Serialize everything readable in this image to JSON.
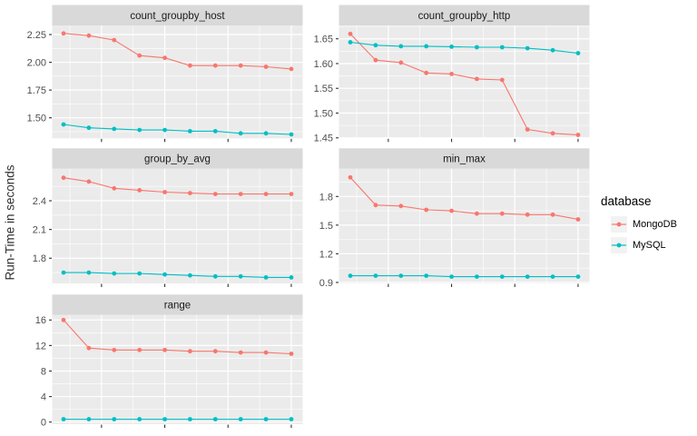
{
  "figure": {
    "ylabel": "Run-Time in seconds"
  },
  "theme": {
    "panel_bg": "#EBEBEB",
    "strip_bg": "#D9D9D9",
    "strip_text_color": "#1A1A1A",
    "grid_color": "#FFFFFF",
    "axis_text_color": "#4D4D4D",
    "tick_color": "#333333",
    "legend_key_bg": "#F2F2F2"
  },
  "legend": {
    "title": "database",
    "position": "right",
    "items": [
      {
        "label": "MongoDB",
        "color": "#F8766D"
      },
      {
        "label": "MySQL",
        "color": "#00BFC4"
      }
    ]
  },
  "chart_data": [
    {
      "type": "line",
      "title": "count_groupby_host",
      "facet_position": {
        "col": "left",
        "row": 1
      },
      "x": [
        1,
        2,
        3,
        4,
        5,
        6,
        7,
        8,
        9,
        10
      ],
      "series": [
        {
          "name": "MongoDB",
          "values": [
            2.26,
            2.24,
            2.2,
            2.06,
            2.04,
            1.97,
            1.97,
            1.97,
            1.96,
            1.94
          ]
        },
        {
          "name": "MySQL",
          "values": [
            1.44,
            1.41,
            1.4,
            1.39,
            1.39,
            1.38,
            1.38,
            1.36,
            1.36,
            1.35
          ]
        }
      ],
      "xlim": [
        0.55,
        10.45
      ],
      "ylim": [
        1.315,
        2.332
      ],
      "yticks": [
        1.5,
        1.75,
        2.0,
        2.25
      ],
      "ytick_labels": [
        "1.50",
        "1.75",
        "2.00",
        "2.25"
      ],
      "yticks_minor": [
        1.375,
        1.625,
        1.875,
        2.125
      ],
      "xticks": [
        2.5,
        5,
        7.5,
        10
      ],
      "xtick_labels": [
        "",
        "",
        "",
        ""
      ],
      "xticks_minor": [
        1.25,
        3.75,
        6.25,
        8.75
      ],
      "grid": "on"
    },
    {
      "type": "line",
      "title": "count_groupby_http",
      "facet_position": {
        "col": "right",
        "row": 1
      },
      "x": [
        1,
        2,
        3,
        4,
        5,
        6,
        7,
        8,
        9,
        10
      ],
      "series": [
        {
          "name": "MongoDB",
          "values": [
            1.66,
            1.607,
            1.602,
            1.581,
            1.579,
            1.569,
            1.567,
            1.467,
            1.459,
            1.456
          ]
        },
        {
          "name": "MySQL",
          "values": [
            1.643,
            1.637,
            1.635,
            1.635,
            1.634,
            1.633,
            1.633,
            1.631,
            1.627,
            1.621
          ]
        }
      ],
      "xlim": [
        0.55,
        10.45
      ],
      "ylim": [
        1.449,
        1.677
      ],
      "yticks": [
        1.45,
        1.5,
        1.55,
        1.6,
        1.65
      ],
      "ytick_labels": [
        "1.45",
        "1.50",
        "1.55",
        "1.60",
        "1.65"
      ],
      "yticks_minor": [
        1.475,
        1.525,
        1.575,
        1.625,
        1.675
      ],
      "xticks": [
        2.5,
        5,
        7.5,
        10
      ],
      "xtick_labels": [
        "",
        "",
        "",
        ""
      ],
      "xticks_minor": [
        1.25,
        3.75,
        6.25,
        8.75
      ],
      "grid": "on"
    },
    {
      "type": "line",
      "title": "group_by_avg",
      "facet_position": {
        "col": "left",
        "row": 2
      },
      "x": [
        1,
        2,
        3,
        4,
        5,
        6,
        7,
        8,
        9,
        10
      ],
      "series": [
        {
          "name": "MongoDB",
          "values": [
            2.64,
            2.6,
            2.53,
            2.51,
            2.49,
            2.48,
            2.47,
            2.47,
            2.47,
            2.47
          ]
        },
        {
          "name": "MySQL",
          "values": [
            1.65,
            1.65,
            1.64,
            1.64,
            1.63,
            1.62,
            1.61,
            1.61,
            1.6,
            1.6
          ]
        }
      ],
      "xlim": [
        0.55,
        10.45
      ],
      "ylim": [
        1.537,
        2.734
      ],
      "yticks": [
        1.8,
        2.1,
        2.4
      ],
      "ytick_labels": [
        "1.8",
        "2.1",
        "2.4"
      ],
      "yticks_minor": [
        1.65,
        1.95,
        2.25,
        2.55
      ],
      "xticks": [
        2.5,
        5,
        7.5,
        10
      ],
      "xtick_labels": [
        "",
        "",
        "",
        ""
      ],
      "xticks_minor": [
        1.25,
        3.75,
        6.25,
        8.75
      ],
      "grid": "on"
    },
    {
      "type": "line",
      "title": "min_max",
      "facet_position": {
        "col": "right",
        "row": 2
      },
      "x": [
        1,
        2,
        3,
        4,
        5,
        6,
        7,
        8,
        9,
        10
      ],
      "series": [
        {
          "name": "MongoDB",
          "values": [
            2.0,
            1.71,
            1.7,
            1.66,
            1.65,
            1.62,
            1.62,
            1.61,
            1.61,
            1.56
          ]
        },
        {
          "name": "MySQL",
          "values": [
            0.97,
            0.97,
            0.97,
            0.97,
            0.96,
            0.96,
            0.96,
            0.96,
            0.96,
            0.96
          ]
        }
      ],
      "xlim": [
        0.55,
        10.45
      ],
      "ylim": [
        0.89,
        2.09
      ],
      "yticks": [
        0.9,
        1.2,
        1.5,
        1.8
      ],
      "ytick_labels": [
        "0.9",
        "1.2",
        "1.5",
        "1.8"
      ],
      "yticks_minor": [
        1.05,
        1.35,
        1.65,
        1.95
      ],
      "xticks": [
        2.5,
        5,
        7.5,
        10
      ],
      "xtick_labels": [
        "",
        "",
        "",
        ""
      ],
      "xticks_minor": [
        1.25,
        3.75,
        6.25,
        8.75
      ],
      "grid": "on"
    },
    {
      "type": "line",
      "title": "range",
      "facet_position": {
        "col": "left",
        "row": 3
      },
      "x": [
        1,
        2,
        3,
        4,
        5,
        6,
        7,
        8,
        9,
        10
      ],
      "series": [
        {
          "name": "MongoDB",
          "values": [
            16.0,
            11.6,
            11.3,
            11.3,
            11.3,
            11.1,
            11.1,
            10.9,
            10.9,
            10.7
          ]
        },
        {
          "name": "MySQL",
          "values": [
            0.45,
            0.45,
            0.45,
            0.45,
            0.45,
            0.45,
            0.45,
            0.45,
            0.45,
            0.45
          ]
        }
      ],
      "xlim": [
        0.55,
        10.45
      ],
      "ylim": [
        -0.33,
        16.78
      ],
      "yticks": [
        0,
        4,
        8,
        12,
        16
      ],
      "ytick_labels": [
        "0",
        "4",
        "8",
        "12",
        "16"
      ],
      "yticks_minor": [
        2,
        6,
        10,
        14
      ],
      "xticks": [
        2.5,
        5,
        7.5,
        10
      ],
      "xtick_labels": [
        "",
        "",
        "",
        ""
      ],
      "xticks_minor": [
        1.25,
        3.75,
        6.25,
        8.75
      ],
      "grid": "on"
    }
  ]
}
